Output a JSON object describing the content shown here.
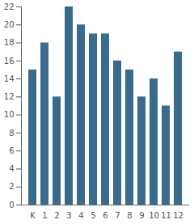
{
  "chart_data": {
    "type": "bar",
    "categories": [
      "K",
      "1",
      "2",
      "3",
      "4",
      "5",
      "6",
      "7",
      "8",
      "9",
      "10",
      "11",
      "12"
    ],
    "values": [
      15,
      18,
      12,
      22,
      20,
      19,
      19,
      16,
      15,
      12,
      14,
      11,
      17
    ],
    "color": "#3a6b8c",
    "ylim": [
      0,
      22
    ],
    "yticks": [
      0,
      2,
      4,
      6,
      8,
      10,
      12,
      14,
      16,
      18,
      20,
      22
    ],
    "grid": false
  }
}
